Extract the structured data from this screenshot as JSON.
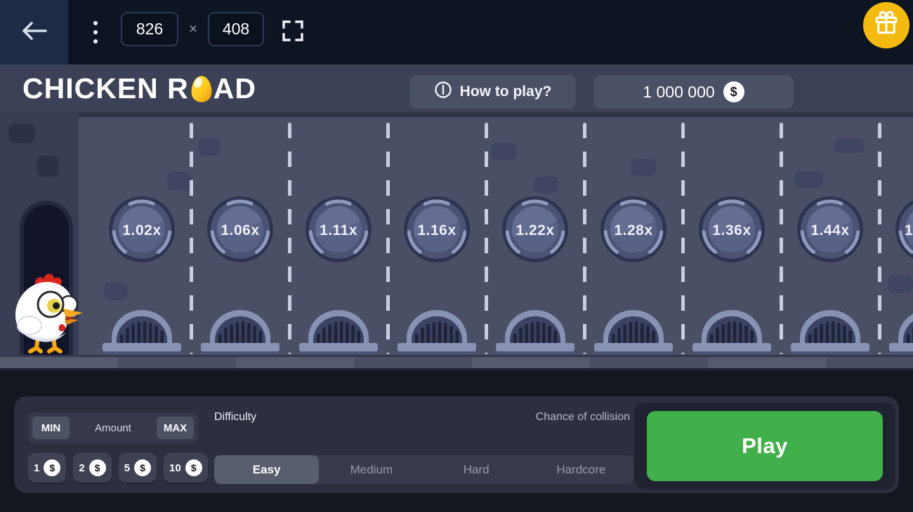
{
  "toolbar": {
    "back_icon": "arrow-left",
    "menu_icon": "kebab-vertical",
    "width_value": "826",
    "separator": "×",
    "height_value": "408",
    "fullscreen_icon": "fullscreen-corners",
    "gift_icon": "gift",
    "gift_color": "#f5ba10"
  },
  "header": {
    "logo_part1": "CHICKEN R",
    "logo_egg_icon": "egg",
    "logo_part2": "AD",
    "how_to_play": {
      "icon": "info-circle",
      "label": "How to play?"
    },
    "balance": {
      "value": "1 000 000",
      "currency_symbol": "$",
      "coin_icon": "dollar-coin"
    },
    "expand_icon": "expand-arrows",
    "menu_icon": "hamburger"
  },
  "game": {
    "character_icon": "chicken",
    "door_icon": "arch-doorway",
    "hatch_icon": "sewer-grate",
    "multipliers": [
      "1.02x",
      "1.06x",
      "1.11x",
      "1.16x",
      "1.22x",
      "1.28x",
      "1.36x",
      "1.44x"
    ],
    "partial_multiplier": "1"
  },
  "bet_panel": {
    "min_label": "MIN",
    "amount_label": "Amount",
    "max_label": "MAX",
    "currency_symbol": "$",
    "quick_bets": [
      "1",
      "2",
      "5",
      "10"
    ]
  },
  "difficulty": {
    "label": "Difficulty",
    "chance_label": "Chance of collision",
    "options": [
      "Easy",
      "Medium",
      "Hard",
      "Hardcore"
    ],
    "selected": "Easy"
  },
  "play_button": {
    "label": "Play"
  },
  "colors": {
    "accent_green": "#42b04a",
    "gift_yellow": "#f5ba10",
    "topbar": "#0d1422",
    "header": "#3c4157",
    "road": "#4a4f66",
    "panel": "#2b2f3e"
  }
}
